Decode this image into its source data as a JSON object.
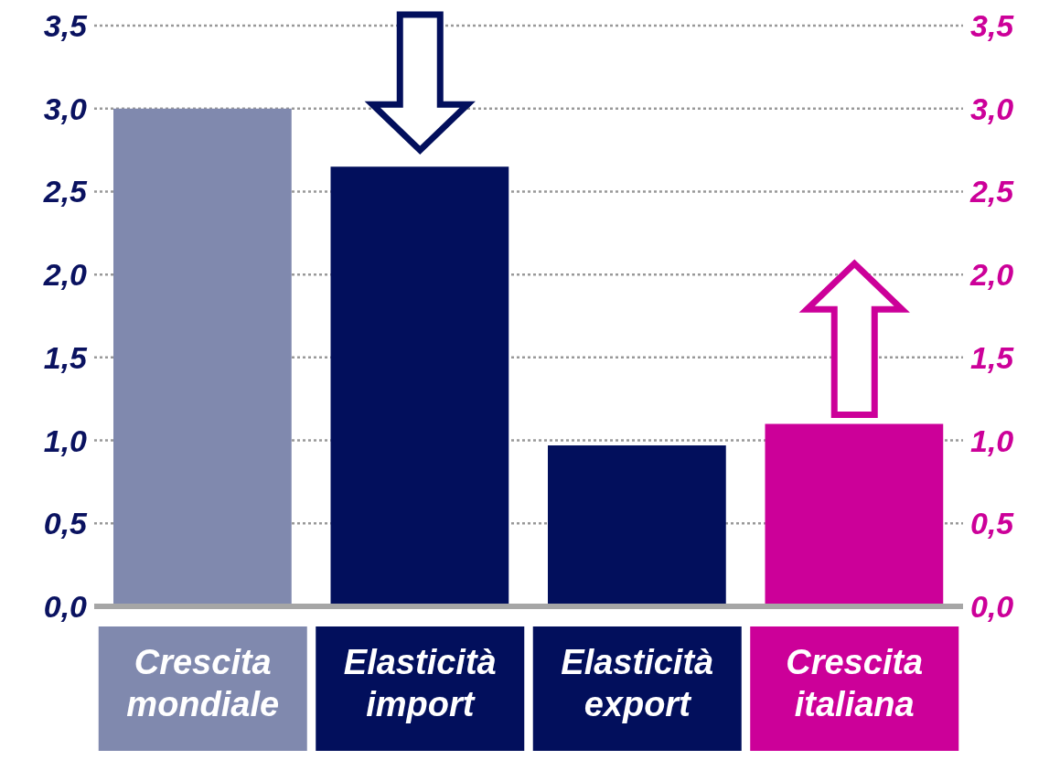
{
  "chart_data": {
    "type": "bar",
    "categories": [
      "Crescita mondiale",
      "Elasticità import",
      "Elasticità export",
      "Crescita italiana"
    ],
    "values": [
      3.0,
      2.65,
      0.97,
      1.1
    ],
    "colors": [
      "#8089ae",
      "#020f5c",
      "#020f5c",
      "#cc0099"
    ],
    "ylim": [
      0,
      3.5
    ],
    "yticks": [
      {
        "value": 0,
        "label": "0,0"
      },
      {
        "value": 0.5,
        "label": "0,5"
      },
      {
        "value": 1,
        "label": "1,0"
      },
      {
        "value": 1.5,
        "label": "1,5"
      },
      {
        "value": 2,
        "label": "2,0"
      },
      {
        "value": 2.5,
        "label": "2,5"
      },
      {
        "value": 3,
        "label": "3,0"
      },
      {
        "value": 3.5,
        "label": "3,5"
      }
    ],
    "y2lim": [
      0,
      3.5
    ],
    "y2ticks": [
      {
        "value": 0,
        "label": "0,0"
      },
      {
        "value": 0.5,
        "label": "0,5"
      },
      {
        "value": 1,
        "label": "1,0"
      },
      {
        "value": 1.5,
        "label": "1,5"
      },
      {
        "value": 2,
        "label": "2,0"
      },
      {
        "value": 2.5,
        "label": "2,5"
      },
      {
        "value": 3,
        "label": "3,0"
      },
      {
        "value": 3.5,
        "label": "3,5"
      }
    ],
    "grid": "y",
    "legend": false
  }
}
